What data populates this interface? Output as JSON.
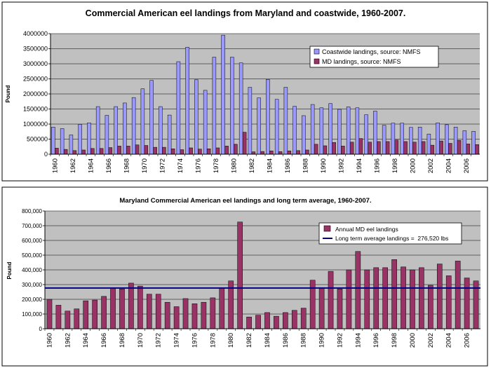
{
  "chart_data": [
    {
      "type": "bar",
      "title": "Commercial American eel landings from Maryland and coastwide, 1960-2007.",
      "xlabel": "",
      "ylabel": "Pound",
      "ylim": [
        0,
        4000000
      ],
      "yticks": [
        0,
        500000,
        1000000,
        1500000,
        2000000,
        2500000,
        3000000,
        3500000,
        4000000
      ],
      "ytick_labels": [
        "0",
        "500000",
        "1000000",
        "1500000",
        "2000000",
        "2500000",
        "3000000",
        "3500000",
        "4000000"
      ],
      "xtick_labels": [
        "1960",
        "1962",
        "1964",
        "1966",
        "1968",
        "1970",
        "1972",
        "1974",
        "1976",
        "1978",
        "1980",
        "1982",
        "1984",
        "1986",
        "1988",
        "1990",
        "1992",
        "1994",
        "1996",
        "1998",
        "2000",
        "2002",
        "2004",
        "2006"
      ],
      "grid": true,
      "legend_position": "right",
      "categories": [
        1960,
        1961,
        1962,
        1963,
        1964,
        1965,
        1966,
        1967,
        1968,
        1969,
        1970,
        1971,
        1972,
        1973,
        1974,
        1975,
        1976,
        1977,
        1978,
        1979,
        1980,
        1981,
        1982,
        1983,
        1984,
        1985,
        1986,
        1987,
        1988,
        1989,
        1990,
        1991,
        1992,
        1993,
        1994,
        1995,
        1996,
        1997,
        1998,
        1999,
        2000,
        2001,
        2002,
        2003,
        2004,
        2005,
        2006,
        2007
      ],
      "series": [
        {
          "name": "Coastwide landings, source: NMFS",
          "color": "#9999ff",
          "values": [
            900000,
            850000,
            640000,
            990000,
            1040000,
            1580000,
            1290000,
            1580000,
            1700000,
            1880000,
            2170000,
            2450000,
            1580000,
            1300000,
            3070000,
            3550000,
            2470000,
            2120000,
            3220000,
            3950000,
            3220000,
            3030000,
            2220000,
            1870000,
            2480000,
            1820000,
            2220000,
            1590000,
            1280000,
            1650000,
            1540000,
            1680000,
            1490000,
            1570000,
            1540000,
            1310000,
            1430000,
            960000,
            1030000,
            1030000,
            890000,
            900000,
            670000,
            1040000,
            980000,
            900000,
            780000,
            760000
          ]
        },
        {
          "name": "MD landings, source: NMFS",
          "color": "#993366",
          "values": [
            200000,
            160000,
            120000,
            140000,
            190000,
            190000,
            220000,
            270000,
            270000,
            310000,
            290000,
            230000,
            230000,
            180000,
            150000,
            210000,
            170000,
            180000,
            210000,
            270000,
            330000,
            730000,
            80000,
            90000,
            110000,
            85000,
            110000,
            120000,
            140000,
            330000,
            280000,
            390000,
            270000,
            400000,
            520000,
            400000,
            420000,
            420000,
            470000,
            420000,
            400000,
            420000,
            300000,
            440000,
            360000,
            460000,
            340000,
            320000
          ]
        }
      ]
    },
    {
      "type": "bar",
      "title": "Maryland Commercial American eel landings and long term average, 1960-2007.",
      "xlabel": "",
      "ylabel": "Pound",
      "ylim": [
        0,
        800000
      ],
      "yticks": [
        0,
        100000,
        200000,
        300000,
        400000,
        500000,
        600000,
        700000,
        800000
      ],
      "ytick_labels": [
        "0",
        "100,000",
        "200,000",
        "300,000",
        "400,000",
        "500,000",
        "600,000",
        "700,000",
        "800,000"
      ],
      "xtick_labels": [
        "1960",
        "1962",
        "1964",
        "1966",
        "1968",
        "1970",
        "1972",
        "1974",
        "1976",
        "1978",
        "1980",
        "1982",
        "1984",
        "1986",
        "1988",
        "1990",
        "1992",
        "1994",
        "1996",
        "1998",
        "2000",
        "2002",
        "2004",
        "2006"
      ],
      "grid": true,
      "legend_position": "top-right",
      "categories": [
        1960,
        1961,
        1962,
        1963,
        1964,
        1965,
        1966,
        1967,
        1968,
        1969,
        1970,
        1971,
        1972,
        1973,
        1974,
        1975,
        1976,
        1977,
        1978,
        1979,
        1980,
        1981,
        1982,
        1983,
        1984,
        1985,
        1986,
        1987,
        1988,
        1989,
        1990,
        1991,
        1992,
        1993,
        1994,
        1995,
        1996,
        1997,
        1998,
        1999,
        2000,
        2001,
        2002,
        2003,
        2004,
        2005,
        2006,
        2007
      ],
      "series": [
        {
          "name": "Annual MD eel landings",
          "color": "#993366",
          "values": [
            200000,
            160000,
            120000,
            135000,
            190000,
            195000,
            220000,
            275000,
            270000,
            310000,
            290000,
            235000,
            235000,
            180000,
            150000,
            205000,
            170000,
            180000,
            210000,
            275000,
            325000,
            725000,
            80000,
            92000,
            110000,
            85000,
            110000,
            125000,
            140000,
            330000,
            280000,
            390000,
            270000,
            400000,
            525000,
            400000,
            415000,
            415000,
            470000,
            420000,
            400000,
            415000,
            295000,
            440000,
            360000,
            460000,
            345000,
            325000
          ]
        }
      ],
      "reference_line": {
        "name": "Long term average landings =  276,520 lbs",
        "value": 276520,
        "color": "#000080"
      }
    }
  ]
}
